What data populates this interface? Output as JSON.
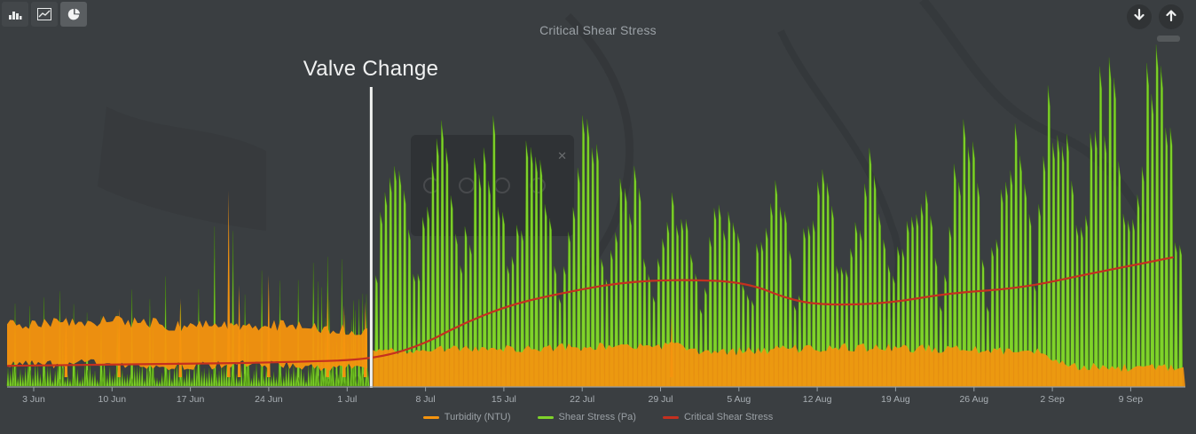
{
  "window": {
    "background": "#3a3e41"
  },
  "toolbar": {
    "left_buttons": [
      {
        "icon": "bar-chart-icon",
        "active": false
      },
      {
        "icon": "line-chart-icon",
        "active": false
      },
      {
        "icon": "pie-chart-icon",
        "active": true
      }
    ],
    "right_buttons": [
      {
        "icon": "arrow-down-icon"
      },
      {
        "icon": "arrow-up-icon"
      }
    ]
  },
  "header": {
    "title": "Critical Shear Stress"
  },
  "annotation": {
    "label": "Valve Change"
  },
  "chart_data": {
    "type": "area",
    "title": "Critical Shear Stress",
    "grid": false,
    "y_axis_visible": false,
    "legend_position": "bottom",
    "x_ticks": [
      "3 Jun",
      "10 Jun",
      "17 Jun",
      "24 Jun",
      "1 Jul",
      "8 Jul",
      "15 Jul",
      "22 Jul",
      "29 Jul",
      "5 Aug",
      "12 Aug",
      "19 Aug",
      "26 Aug",
      "2 Sep",
      "9 Sep"
    ],
    "x_tick_start_frac": 0.0226,
    "x_tick_step_frac": 0.0665,
    "annotations": [
      {
        "type": "vline",
        "label": "Valve Change",
        "x_frac": 0.309,
        "color": "#f2f3f1"
      }
    ],
    "series": [
      {
        "name": "Turbidity (NTU)",
        "color": "#F5940E",
        "type": "noisy-band",
        "band": [
          [
            0.0,
            0.185,
            0.063
          ],
          [
            0.08,
            0.192,
            0.068
          ],
          [
            0.15,
            0.18,
            0.058
          ],
          [
            0.2,
            0.185,
            0.065
          ],
          [
            0.25,
            0.175,
            0.058
          ],
          [
            0.305,
            0.168,
            0.052
          ],
          [
            0.312,
            0.105,
            0.0
          ],
          [
            0.4,
            0.108,
            0.0
          ],
          [
            0.5,
            0.118,
            0.0
          ],
          [
            0.56,
            0.122,
            0.0
          ],
          [
            0.6,
            0.1,
            0.0
          ],
          [
            0.7,
            0.115,
            0.0
          ],
          [
            0.8,
            0.11,
            0.0
          ],
          [
            0.88,
            0.1,
            0.0
          ],
          [
            0.898,
            0.062,
            0.0
          ],
          [
            0.94,
            0.055,
            0.0
          ],
          [
            1.0,
            0.052,
            0.0
          ]
        ],
        "spikes": [
          [
            0.05,
            0.21
          ],
          [
            0.095,
            0.23
          ],
          [
            0.147,
            0.26
          ],
          [
            0.188,
            0.58
          ],
          [
            0.197,
            0.3
          ],
          [
            0.222,
            0.33
          ],
          [
            0.272,
            0.28
          ],
          [
            0.286,
            0.24
          ],
          [
            0.304,
            0.25
          ],
          [
            0.564,
            0.21
          ]
        ]
      },
      {
        "name": "Shear Stress (Pa)",
        "color": "#7FD32A",
        "type": "spikes",
        "regime_change_frac": 0.309,
        "peak_envelope": [
          [
            0.0,
            0.3
          ],
          [
            0.05,
            0.32
          ],
          [
            0.1,
            0.3
          ],
          [
            0.14,
            0.33
          ],
          [
            0.187,
            0.48
          ],
          [
            0.22,
            0.34
          ],
          [
            0.26,
            0.36
          ],
          [
            0.29,
            0.38
          ],
          [
            0.305,
            0.4
          ],
          [
            0.315,
            0.55
          ],
          [
            0.34,
            0.78
          ],
          [
            0.36,
            0.7
          ],
          [
            0.383,
            0.86
          ],
          [
            0.4,
            0.7
          ],
          [
            0.42,
            0.8
          ],
          [
            0.44,
            0.68
          ],
          [
            0.46,
            0.62
          ],
          [
            0.48,
            0.72
          ],
          [
            0.504,
            0.84
          ],
          [
            0.52,
            0.62
          ],
          [
            0.54,
            0.56
          ],
          [
            0.56,
            0.55
          ],
          [
            0.58,
            0.5
          ],
          [
            0.6,
            0.52
          ],
          [
            0.625,
            0.5
          ],
          [
            0.65,
            0.55
          ],
          [
            0.675,
            0.58
          ],
          [
            0.7,
            0.6
          ],
          [
            0.73,
            0.62
          ],
          [
            0.755,
            0.65
          ],
          [
            0.78,
            0.6
          ],
          [
            0.8,
            0.68
          ],
          [
            0.82,
            0.72
          ],
          [
            0.84,
            0.65
          ],
          [
            0.865,
            0.8
          ],
          [
            0.893,
            0.93
          ],
          [
            0.91,
            0.85
          ],
          [
            0.925,
            0.97
          ],
          [
            0.945,
            0.88
          ],
          [
            0.96,
            0.97
          ],
          [
            0.975,
            0.9
          ],
          [
            0.99,
            0.98
          ]
        ]
      },
      {
        "name": "Critical Shear Stress",
        "color": "#C5301F",
        "type": "line",
        "points": [
          [
            0.0,
            0.06
          ],
          [
            0.15,
            0.065
          ],
          [
            0.25,
            0.072
          ],
          [
            0.309,
            0.079
          ],
          [
            0.35,
            0.118
          ],
          [
            0.386,
            0.184
          ],
          [
            0.424,
            0.237
          ],
          [
            0.46,
            0.268
          ],
          [
            0.52,
            0.308
          ],
          [
            0.575,
            0.316
          ],
          [
            0.627,
            0.308
          ],
          [
            0.665,
            0.255
          ],
          [
            0.695,
            0.24
          ],
          [
            0.747,
            0.245
          ],
          [
            0.8,
            0.276
          ],
          [
            0.86,
            0.29
          ],
          [
            0.92,
            0.334
          ],
          [
            0.99,
            0.382
          ]
        ]
      }
    ]
  }
}
